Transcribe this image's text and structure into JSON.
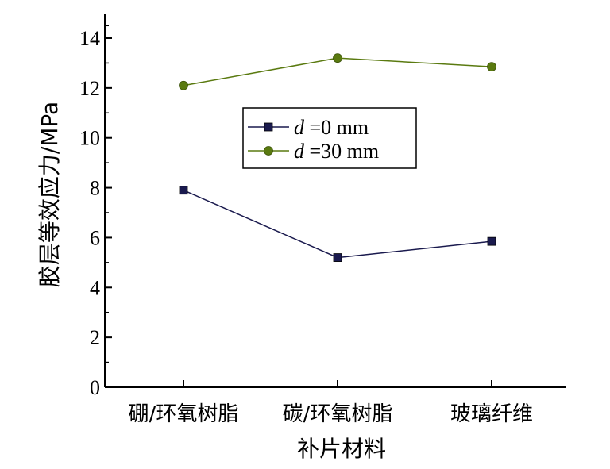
{
  "chart_data": {
    "type": "line",
    "categories": [
      "硼/环氧树脂",
      "碳/环氧树脂",
      "玻璃纤维"
    ],
    "series": [
      {
        "name": "d =0 mm",
        "legend_var": "d",
        "legend_rest": " =0 mm",
        "values": [
          7.9,
          5.2,
          5.85
        ],
        "color": "#1a1a4e",
        "marker": "square"
      },
      {
        "name": "d =30 mm",
        "legend_var": "d",
        "legend_rest": " =30 mm",
        "values": [
          12.1,
          13.2,
          12.85
        ],
        "color": "#5a7a10",
        "marker": "circle"
      }
    ],
    "xlabel": "补片材料",
    "ylabel": "胶层等效应力/MPa",
    "ylim": [
      0,
      14
    ],
    "yticks": [
      "0",
      "2",
      "4",
      "6",
      "8",
      "10",
      "12",
      "14"
    ],
    "grid": false,
    "legend_position": "upper-center"
  }
}
